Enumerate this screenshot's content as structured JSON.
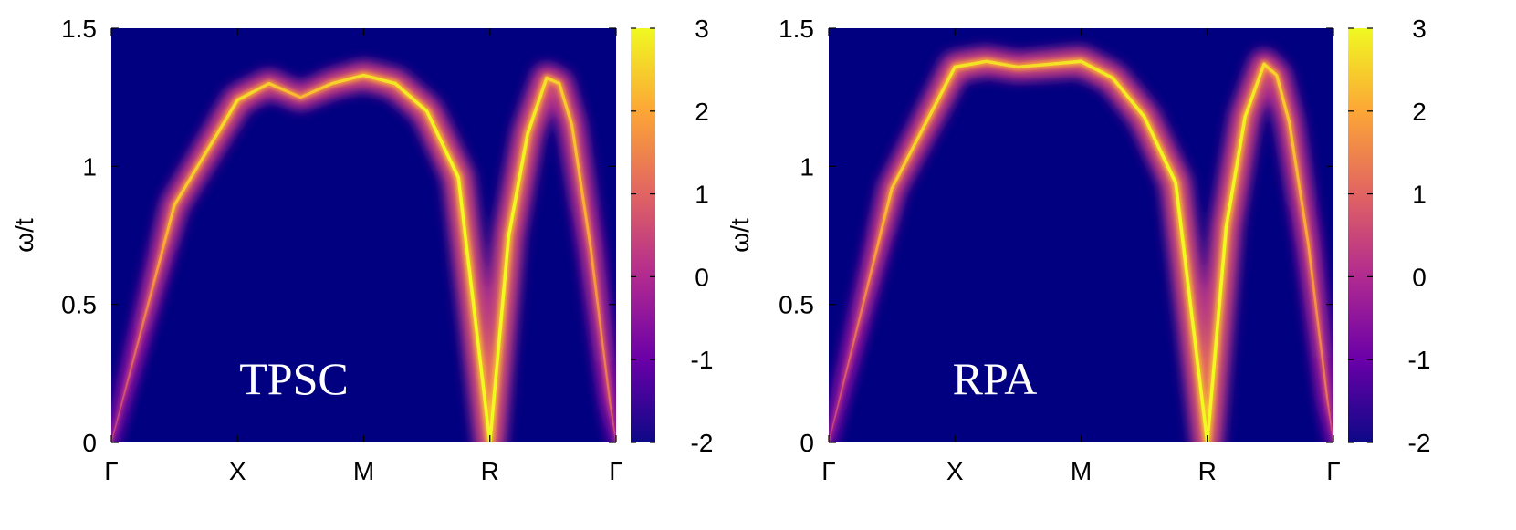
{
  "chart_data": [
    {
      "type": "heatmap",
      "annotation": "TPSC",
      "ylabel": "ω/t",
      "ylim": [
        0,
        1.5
      ],
      "yticks": [
        "0",
        "0.5",
        "1",
        "1.5"
      ],
      "xticks": [
        "Γ",
        "X",
        "M",
        "R",
        "Γ"
      ],
      "colorbar": {
        "range": [
          -2,
          3
        ],
        "ticks": [
          "-2",
          "-1",
          "0",
          "1",
          "2",
          "3"
        ],
        "colormap": [
          "#0d0887",
          "#6a00a8",
          "#b12a90",
          "#e16462",
          "#fca636",
          "#f0f921"
        ]
      },
      "background_color": "#000080",
      "dispersion": {
        "k_position": [
          0,
          0.5,
          1,
          1.25,
          1.5,
          1.75,
          2,
          2.25,
          2.5,
          2.75,
          3,
          3.15,
          3.3,
          3.45,
          3.55,
          3.65,
          3.8,
          3.95,
          4
        ],
        "omega": [
          0,
          0.86,
          1.24,
          1.3,
          1.25,
          1.3,
          1.33,
          1.3,
          1.2,
          0.96,
          0,
          0.75,
          1.12,
          1.32,
          1.3,
          1.15,
          0.7,
          0.15,
          0
        ],
        "intensity": [
          0.3,
          2.4,
          2.7,
          2.5,
          2.2,
          2.5,
          2.7,
          2.8,
          2.9,
          3,
          3,
          3,
          2.9,
          2.7,
          2.5,
          2.4,
          2.0,
          1.2,
          0.3
        ]
      }
    },
    {
      "type": "heatmap",
      "annotation": "RPA",
      "ylabel": "ω/t",
      "ylim": [
        0,
        1.5
      ],
      "yticks": [
        "0",
        "0.5",
        "1",
        "1.5"
      ],
      "xticks": [
        "Γ",
        "X",
        "M",
        "R",
        "Γ"
      ],
      "colorbar": {
        "range": [
          -2,
          3
        ],
        "ticks": [
          "-2",
          "-1",
          "0",
          "1",
          "2",
          "3"
        ],
        "colormap": [
          "#0d0887",
          "#6a00a8",
          "#b12a90",
          "#e16462",
          "#fca636",
          "#f0f921"
        ]
      },
      "background_color": "#000080",
      "dispersion": {
        "k_position": [
          0,
          0.5,
          1,
          1.25,
          1.5,
          1.75,
          2,
          2.25,
          2.5,
          2.75,
          3,
          3.15,
          3.3,
          3.45,
          3.55,
          3.65,
          3.8,
          3.95,
          4
        ],
        "omega": [
          0,
          0.92,
          1.36,
          1.38,
          1.36,
          1.37,
          1.38,
          1.32,
          1.18,
          0.94,
          0,
          0.78,
          1.18,
          1.37,
          1.33,
          1.16,
          0.72,
          0.16,
          0
        ],
        "intensity": [
          0.3,
          2.4,
          2.8,
          2.7,
          2.6,
          2.7,
          2.8,
          2.8,
          2.9,
          3,
          3,
          3,
          2.9,
          2.7,
          2.5,
          2.4,
          2.0,
          1.2,
          0.3
        ]
      }
    }
  ]
}
